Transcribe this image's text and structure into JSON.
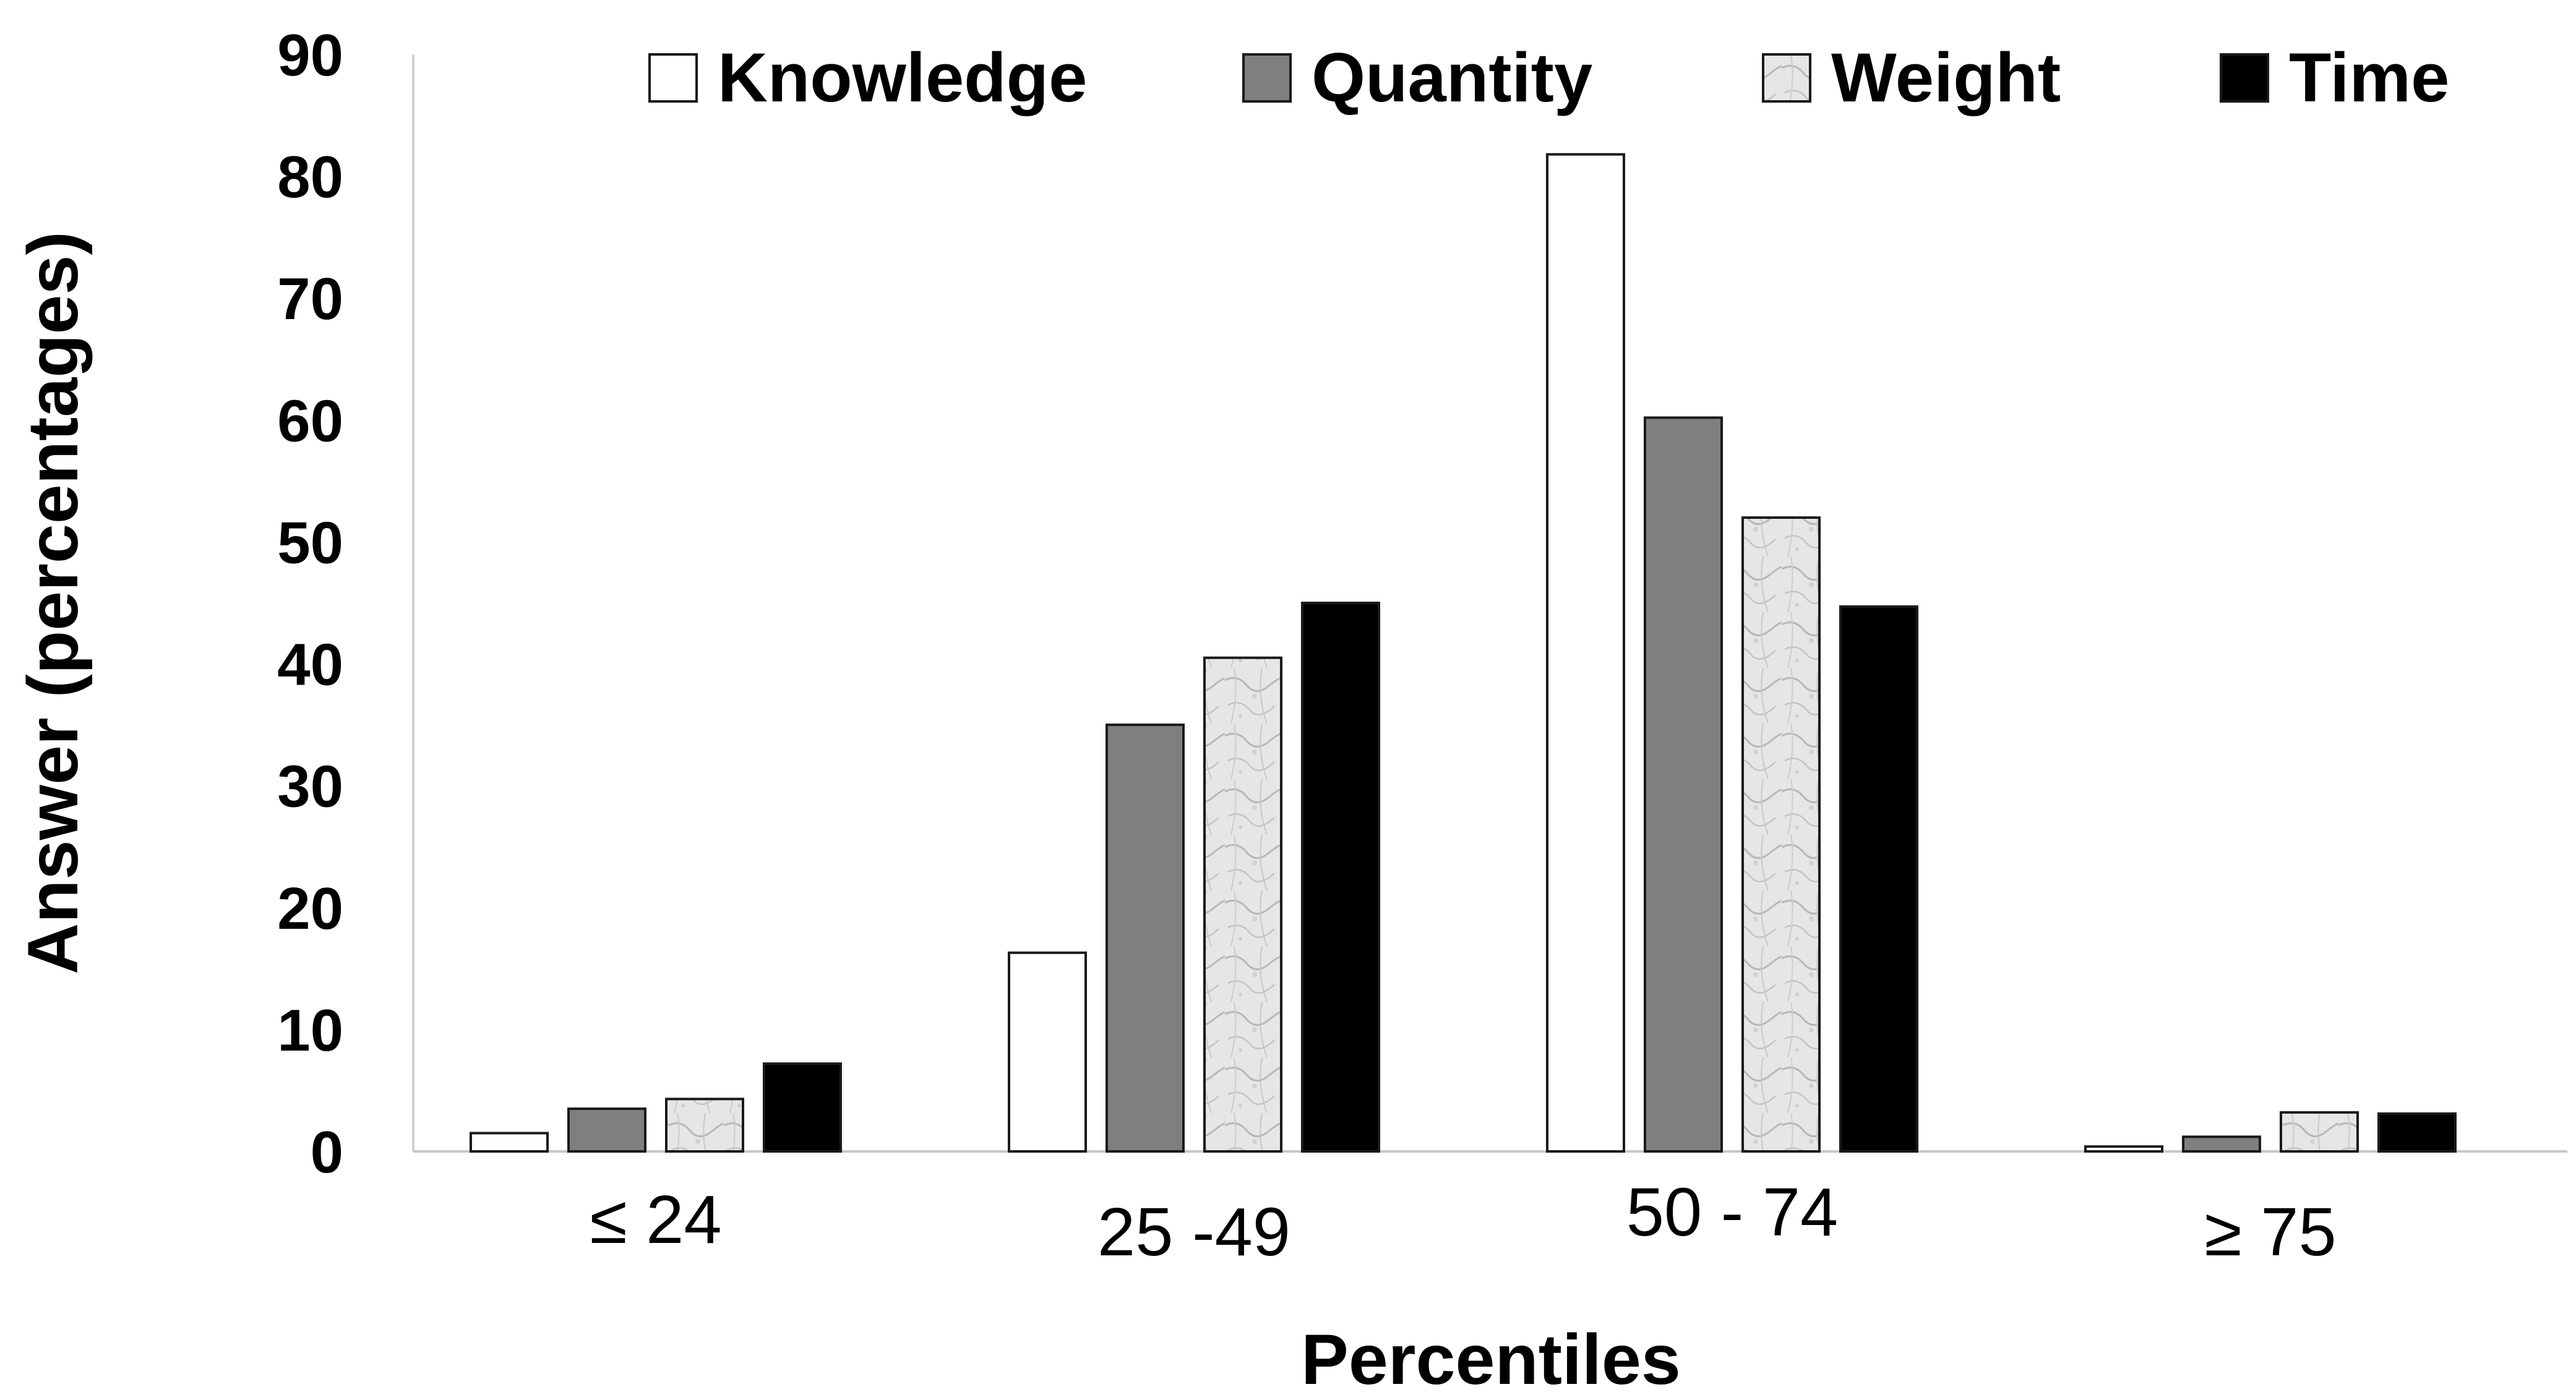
{
  "chart_data": {
    "type": "bar",
    "title": "",
    "xlabel": "Percentiles",
    "ylabel": "Answer (percentages)",
    "ylim": [
      0,
      90
    ],
    "yticks": [
      "0",
      "10",
      "20",
      "30",
      "40",
      "50",
      "60",
      "70",
      "80",
      "90"
    ],
    "categories": [
      "≤ 24",
      "25 -49",
      "50 - 74",
      "≥ 75"
    ],
    "series": [
      {
        "name": "Knowledge",
        "color": "#ffffff",
        "pattern": "none",
        "values": [
          1.5,
          16.3,
          81.8,
          0.4
        ]
      },
      {
        "name": "Quantity",
        "color": "#7f7f7f",
        "pattern": "none",
        "values": [
          3.5,
          35.0,
          60.2,
          1.2
        ]
      },
      {
        "name": "Weight",
        "color": "#e4e4e4",
        "pattern": "marble",
        "values": [
          4.3,
          40.5,
          52.0,
          3.2
        ]
      },
      {
        "name": "Time",
        "color": "#000000",
        "pattern": "none",
        "values": [
          7.2,
          45.0,
          44.7,
          3.1
        ]
      }
    ],
    "legend_position": "top",
    "grid": false
  }
}
